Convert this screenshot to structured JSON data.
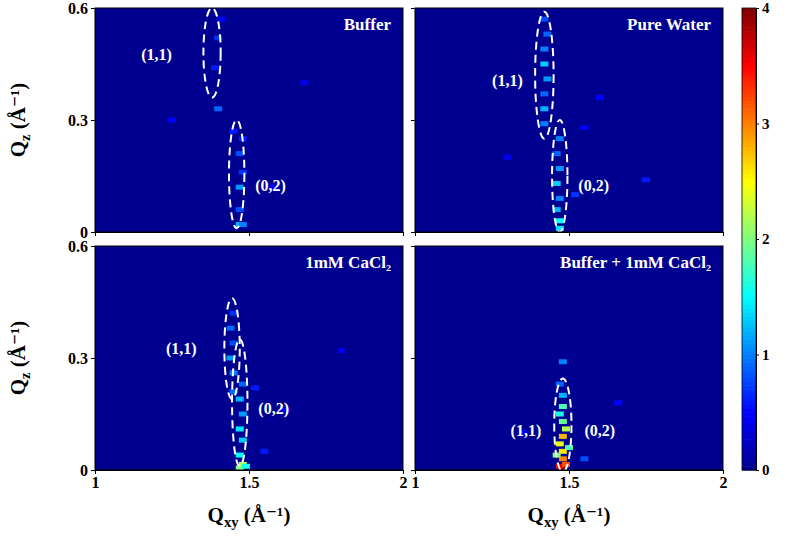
{
  "chart_data": [
    {
      "type": "heatmap",
      "title": "Buffer",
      "y_label": "Qz (Å⁻¹)",
      "tick_labels": "y",
      "xlim": [
        1,
        2
      ],
      "xticks": [
        1,
        1.5,
        2
      ],
      "ylim": [
        0,
        0.6
      ],
      "yticks": [
        0,
        0.3,
        0.6
      ],
      "cells": [
        [
          1.47,
          0.02,
          1.2
        ],
        [
          1.48,
          0.02,
          1.0
        ],
        [
          1.47,
          0.06,
          0.8
        ],
        [
          1.47,
          0.12,
          1.1
        ],
        [
          1.48,
          0.16,
          0.7
        ],
        [
          1.47,
          0.21,
          0.8
        ],
        [
          1.48,
          0.25,
          0.6
        ],
        [
          1.4,
          0.33,
          0.9
        ],
        [
          1.39,
          0.44,
          0.6
        ],
        [
          1.4,
          0.52,
          0.7
        ],
        [
          1.41,
          0.57,
          0.5
        ],
        [
          1.58,
          0.12,
          0.5
        ],
        [
          1.25,
          0.3,
          0.5
        ],
        [
          1.68,
          0.4,
          0.4
        ],
        [
          1.45,
          0.27,
          0.6
        ]
      ],
      "ellipses": [
        {
          "cx": 1.38,
          "cy": 0.48,
          "rx": 0.028,
          "ry": 0.12
        },
        {
          "cx": 1.46,
          "cy": 0.155,
          "rx": 0.025,
          "ry": 0.145
        }
      ],
      "annotations": [
        {
          "text": "(1,1)",
          "x": 1.2,
          "y": 0.47
        },
        {
          "text": "(0,2)",
          "x": 1.57,
          "y": 0.12
        }
      ]
    },
    {
      "type": "heatmap",
      "title": "Pure Water",
      "tick_labels": false,
      "xlim": [
        1,
        2
      ],
      "xticks": [
        1,
        1.5,
        2
      ],
      "ylim": [
        0,
        0.6
      ],
      "yticks": [
        0,
        0.3,
        0.6
      ],
      "zlim": [
        0,
        4
      ],
      "zticks": [
        0,
        1,
        2,
        3,
        4
      ],
      "cells": [
        [
          1.47,
          0.01,
          1.4
        ],
        [
          1.47,
          0.03,
          1.5
        ],
        [
          1.46,
          0.06,
          1.2
        ],
        [
          1.47,
          0.09,
          1.0
        ],
        [
          1.46,
          0.13,
          1.3
        ],
        [
          1.47,
          0.17,
          1.1
        ],
        [
          1.46,
          0.21,
          0.9
        ],
        [
          1.47,
          0.25,
          1.0
        ],
        [
          1.42,
          0.29,
          1.0
        ],
        [
          1.42,
          0.33,
          1.2
        ],
        [
          1.42,
          0.37,
          0.9
        ],
        [
          1.43,
          0.41,
          1.1
        ],
        [
          1.42,
          0.45,
          1.3
        ],
        [
          1.42,
          0.49,
          1.0
        ],
        [
          1.43,
          0.53,
          0.9
        ],
        [
          1.42,
          0.57,
          0.8
        ],
        [
          1.52,
          0.1,
          0.7
        ],
        [
          1.6,
          0.36,
          0.5
        ],
        [
          1.75,
          0.14,
          0.6
        ],
        [
          1.3,
          0.2,
          0.4
        ],
        [
          1.55,
          0.28,
          0.5
        ]
      ],
      "ellipses": [
        {
          "cx": 1.42,
          "cy": 0.42,
          "rx": 0.03,
          "ry": 0.17
        },
        {
          "cx": 1.47,
          "cy": 0.15,
          "rx": 0.025,
          "ry": 0.15
        }
      ],
      "annotations": [
        {
          "text": "(1,1)",
          "x": 1.3,
          "y": 0.4
        },
        {
          "text": "(0,2)",
          "x": 1.58,
          "y": 0.12
        }
      ]
    },
    {
      "type": "heatmap",
      "title": "1mM CaCl₂",
      "x_label": "Qxy (Å⁻¹)",
      "y_label": "Qz (Å⁻¹)",
      "xlim": [
        1,
        2
      ],
      "xticks": [
        1,
        1.5,
        2
      ],
      "ylim": [
        0,
        0.6
      ],
      "yticks": [
        0,
        0.3,
        0.6
      ],
      "cells": [
        [
          1.47,
          0.005,
          2.0
        ],
        [
          1.48,
          0.015,
          2.2
        ],
        [
          1.49,
          0.01,
          1.6
        ],
        [
          1.47,
          0.04,
          1.5
        ],
        [
          1.48,
          0.08,
          1.3
        ],
        [
          1.47,
          0.11,
          1.4
        ],
        [
          1.48,
          0.15,
          1.1
        ],
        [
          1.47,
          0.19,
          1.2
        ],
        [
          1.48,
          0.23,
          0.9
        ],
        [
          1.45,
          0.21,
          0.9
        ],
        [
          1.45,
          0.26,
          1.0
        ],
        [
          1.44,
          0.3,
          1.1
        ],
        [
          1.45,
          0.34,
          0.8
        ],
        [
          1.44,
          0.38,
          0.9
        ],
        [
          1.45,
          0.42,
          0.7
        ],
        [
          1.55,
          0.05,
          0.6
        ],
        [
          1.62,
          0.16,
          0.5
        ],
        [
          1.8,
          0.32,
          0.4
        ],
        [
          1.52,
          0.22,
          0.6
        ]
      ],
      "ellipses": [
        {
          "cx": 1.445,
          "cy": 0.325,
          "rx": 0.025,
          "ry": 0.135
        },
        {
          "cx": 1.47,
          "cy": 0.18,
          "rx": 0.025,
          "ry": 0.17
        }
      ],
      "annotations": [
        {
          "text": "(1,1)",
          "x": 1.28,
          "y": 0.32
        },
        {
          "text": "(0,2)",
          "x": 1.58,
          "y": 0.16
        }
      ]
    },
    {
      "type": "heatmap",
      "title": "Buffer + 1mM CaCl₂",
      "x_label": "Qxy (Å⁻¹)",
      "tick_labels": "x",
      "xlim": [
        1,
        2
      ],
      "xticks": [
        1,
        1.5,
        2
      ],
      "ylim": [
        0,
        0.6
      ],
      "yticks": [
        0,
        0.3,
        0.6
      ],
      "cells": [
        [
          1.48,
          0.005,
          4.0
        ],
        [
          1.47,
          0.01,
          3.6
        ],
        [
          1.49,
          0.015,
          3.2
        ],
        [
          1.48,
          0.03,
          3.0
        ],
        [
          1.48,
          0.05,
          2.6
        ],
        [
          1.47,
          0.07,
          2.4
        ],
        [
          1.48,
          0.09,
          2.8
        ],
        [
          1.49,
          0.11,
          2.2
        ],
        [
          1.48,
          0.13,
          1.9
        ],
        [
          1.47,
          0.15,
          1.6
        ],
        [
          1.48,
          0.17,
          1.8
        ],
        [
          1.48,
          0.2,
          1.2
        ],
        [
          1.47,
          0.23,
          0.9
        ],
        [
          1.48,
          0.29,
          1.0
        ],
        [
          1.46,
          0.04,
          2.0
        ],
        [
          1.5,
          0.06,
          1.8
        ],
        [
          1.55,
          0.03,
          0.8
        ],
        [
          1.66,
          0.18,
          0.5
        ],
        [
          1.35,
          0.1,
          0.5
        ]
      ],
      "ellipses": [
        {
          "cx": 1.48,
          "cy": 0.12,
          "rx": 0.028,
          "ry": 0.125
        }
      ],
      "annotations": [
        {
          "text": "(1,1)",
          "x": 1.36,
          "y": 0.1
        },
        {
          "text": "(0,2)",
          "x": 1.6,
          "y": 0.1
        }
      ]
    }
  ]
}
